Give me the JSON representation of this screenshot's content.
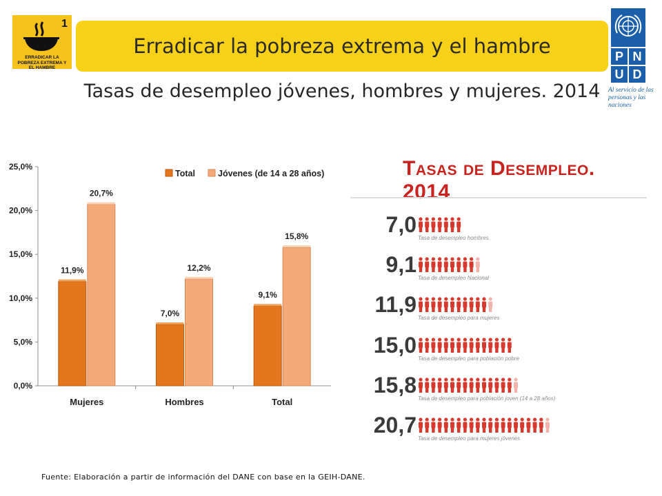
{
  "header": {
    "mdg_number": "1",
    "mdg_caption": "ERRADICAR LA POBREZA EXTREMA Y EL HAMBRE",
    "banner_title": "Erradicar la pobreza extrema y el hambre",
    "undp_letters": [
      "P",
      "N",
      "U",
      "D"
    ],
    "undp_tagline": "Al servicio de las personas y las naciones"
  },
  "subtitle": "Tasas de desempleo jóvenes, hombres y mujeres. 2014",
  "chart_data": {
    "type": "bar",
    "categories": [
      "Mujeres",
      "Hombres",
      "Total"
    ],
    "series": [
      {
        "name": "Total",
        "values": [
          11.9,
          7.0,
          9.1
        ],
        "labels": [
          "11,9%",
          "7,0%",
          "9,1%"
        ],
        "color": "#e4771d"
      },
      {
        "name": "Jóvenes (de 14 a 28 años)",
        "values": [
          20.7,
          12.2,
          15.8
        ],
        "labels": [
          "20,7%",
          "12,2%",
          "15,8%"
        ],
        "color": "#f4a978"
      }
    ],
    "yticks": [
      "0,0%",
      "5,0%",
      "10,0%",
      "15,0%",
      "20,0%",
      "25,0%"
    ],
    "ylim": [
      0,
      25
    ],
    "legend": "top-right",
    "grid": false
  },
  "infographic": {
    "title": "Tasas de Desempleo. 2014",
    "people_color": "#d63a2f",
    "people_fade_color": "#f3b3ad",
    "rows": [
      {
        "number": "7,0",
        "value": 7.0,
        "caption": "Tasa de desempleo hombres"
      },
      {
        "number": "9,1",
        "value": 9.1,
        "caption": "Tasa de desempleo Nacional"
      },
      {
        "number": "11,9",
        "value": 11.9,
        "caption": "Tasa de desempleo para mujeres"
      },
      {
        "number": "15,0",
        "value": 15.0,
        "caption": "Tasa de desempleo para población pobre"
      },
      {
        "number": "15,8",
        "value": 15.8,
        "caption": "Tasa de desempleo para población joven (14 a 28 años)"
      },
      {
        "number": "20,7",
        "value": 20.7,
        "caption": "Tasa de desempleo para mujeres jóvenes"
      }
    ]
  },
  "footnote": "Fuente: Elaboración a partir de información del DANE con base en la GEIH-DANE."
}
